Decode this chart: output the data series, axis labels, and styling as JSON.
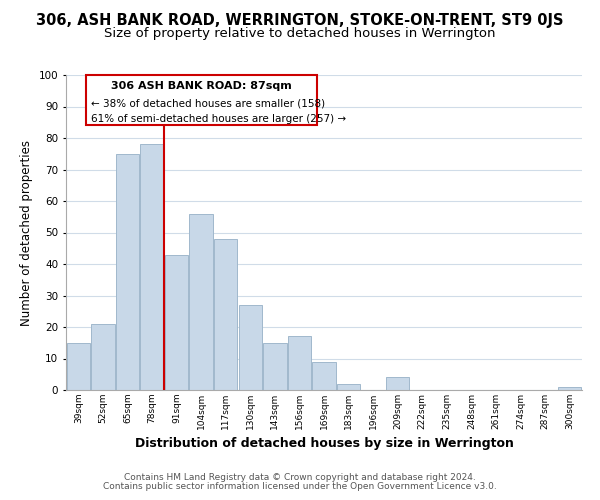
{
  "title": "306, ASH BANK ROAD, WERRINGTON, STOKE-ON-TRENT, ST9 0JS",
  "subtitle": "Size of property relative to detached houses in Werrington",
  "xlabel": "Distribution of detached houses by size in Werrington",
  "ylabel": "Number of detached properties",
  "bar_labels": [
    "39sqm",
    "52sqm",
    "65sqm",
    "78sqm",
    "91sqm",
    "104sqm",
    "117sqm",
    "130sqm",
    "143sqm",
    "156sqm",
    "169sqm",
    "183sqm",
    "196sqm",
    "209sqm",
    "222sqm",
    "235sqm",
    "248sqm",
    "261sqm",
    "274sqm",
    "287sqm",
    "300sqm"
  ],
  "bar_values": [
    15,
    21,
    75,
    78,
    43,
    56,
    48,
    27,
    15,
    17,
    9,
    2,
    0,
    4,
    0,
    0,
    0,
    0,
    0,
    0,
    1
  ],
  "bar_color": "#c8d8e8",
  "bar_edge_color": "#a0b8cc",
  "vline_x_index": 4,
  "vline_color": "#cc0000",
  "annotation_title": "306 ASH BANK ROAD: 87sqm",
  "annotation_line1": "← 38% of detached houses are smaller (158)",
  "annotation_line2": "61% of semi-detached houses are larger (257) →",
  "annotation_box_color": "#ffffff",
  "annotation_box_edge": "#cc0000",
  "ylim": [
    0,
    100
  ],
  "yticks": [
    0,
    10,
    20,
    30,
    40,
    50,
    60,
    70,
    80,
    90,
    100
  ],
  "footer_line1": "Contains HM Land Registry data © Crown copyright and database right 2024.",
  "footer_line2": "Contains public sector information licensed under the Open Government Licence v3.0.",
  "background_color": "#ffffff",
  "grid_color": "#d0dce8",
  "title_fontsize": 10.5,
  "subtitle_fontsize": 9.5,
  "xlabel_fontsize": 9,
  "ylabel_fontsize": 8.5,
  "footer_fontsize": 6.5
}
